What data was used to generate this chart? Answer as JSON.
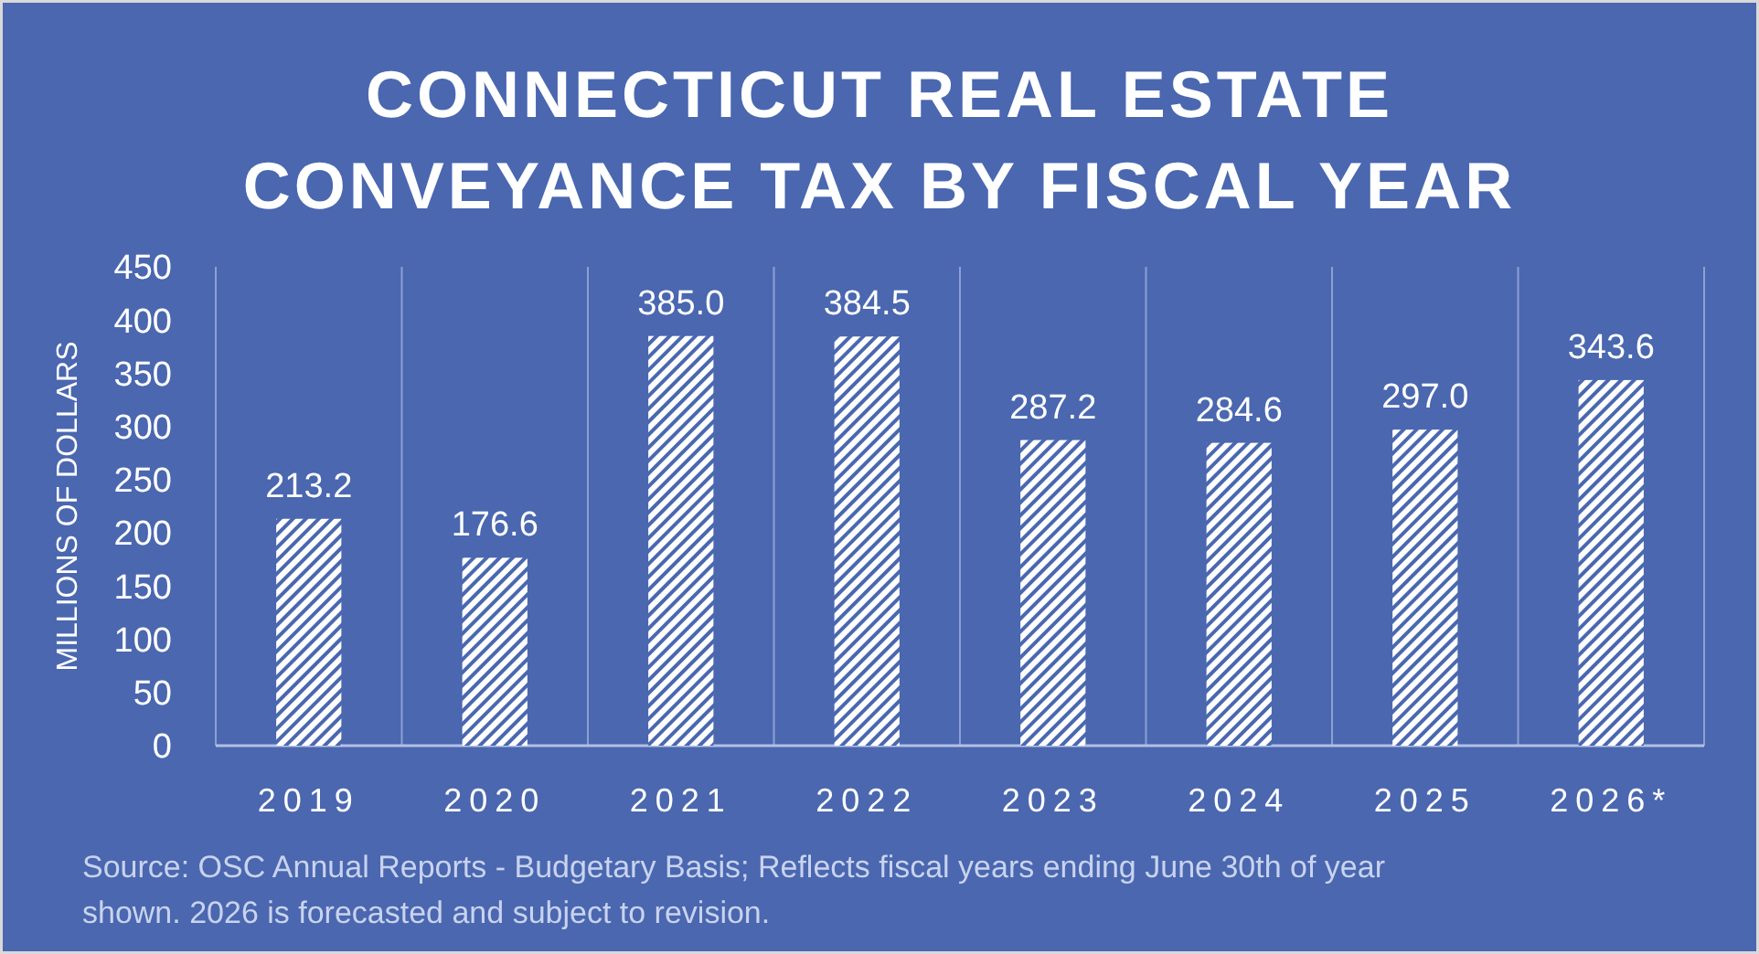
{
  "chart_data": {
    "type": "bar",
    "title": "CONNECTICUT REAL ESTATE\nCONVEYANCE TAX BY FISCAL YEAR",
    "ylabel": "MILLIONS OF DOLLARS",
    "categories": [
      "2019",
      "2020",
      "2021",
      "2022",
      "2023",
      "2024",
      "2025",
      "2026*"
    ],
    "values": [
      213.2,
      176.6,
      385.0,
      384.5,
      287.2,
      284.6,
      297.0,
      343.6
    ],
    "value_labels": [
      "213.2",
      "176.6",
      "385.0",
      "384.5",
      "287.2",
      "284.6",
      "297.0",
      "343.6"
    ],
    "color": "#ffffff",
    "ylim": [
      0,
      450
    ],
    "yticks": [
      0,
      50,
      100,
      150,
      200,
      250,
      300,
      350,
      400,
      450
    ],
    "grid": "x",
    "annotations": [
      "Source: OSC Annual Reports - Budgetary Basis; Reflects fiscal years ending June 30th of year shown. 2026 is forecasted and subject to revision."
    ]
  }
}
